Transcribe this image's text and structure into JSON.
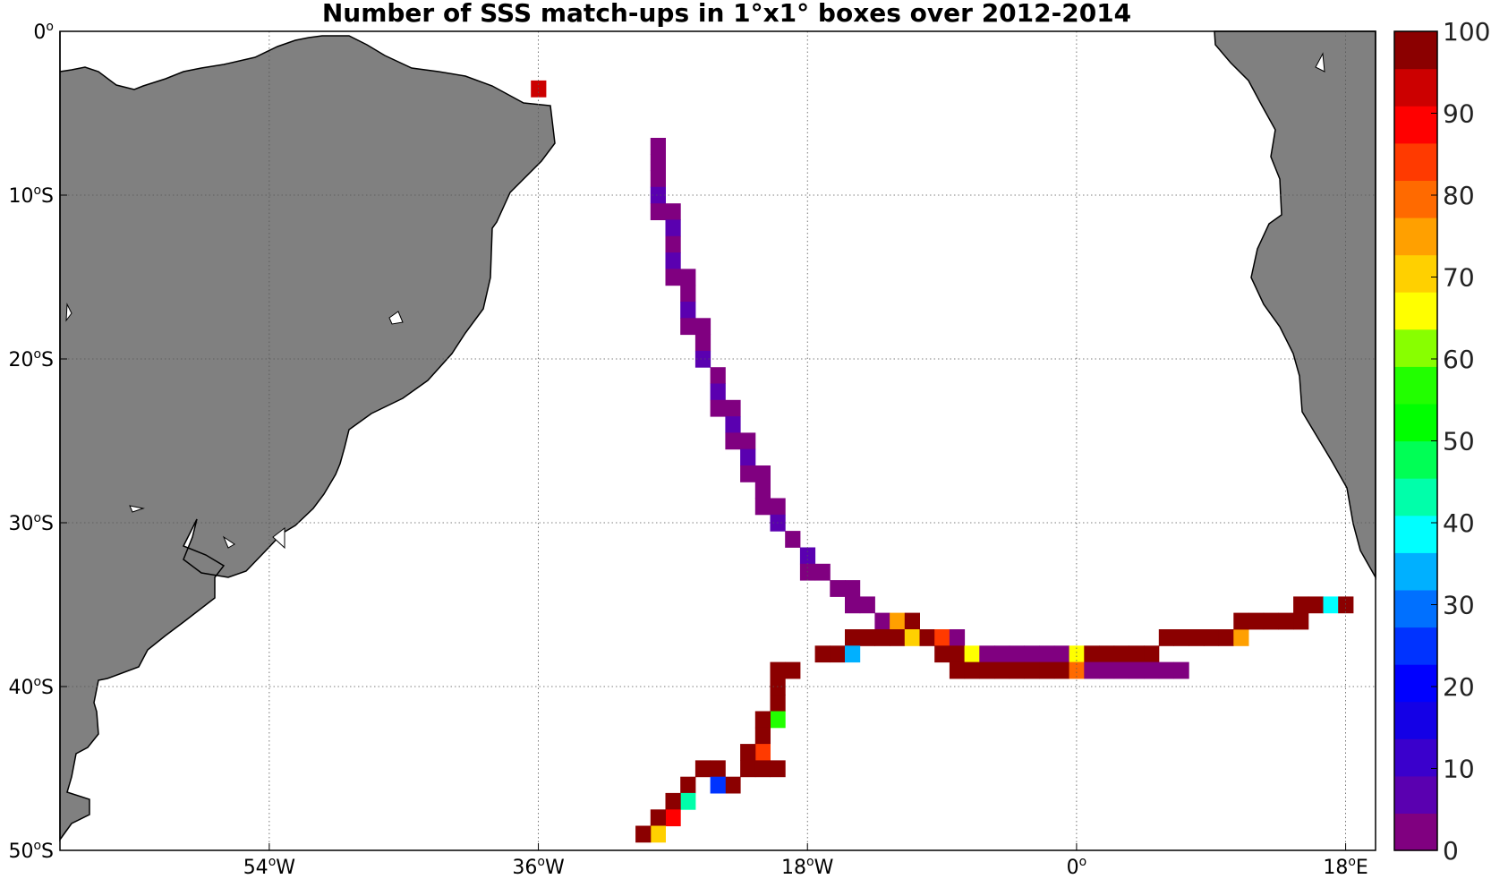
{
  "chart_data": {
    "type": "heatmap",
    "title": "Number of SSS match-ups in 1°x1° boxes over 2012-2014",
    "x_ticks": [
      {
        "value": -54,
        "label": "54",
        "suffix": "W"
      },
      {
        "value": -36,
        "label": "36",
        "suffix": "W"
      },
      {
        "value": -18,
        "label": "18",
        "suffix": "W"
      },
      {
        "value": 0,
        "label": "0",
        "suffix": ""
      },
      {
        "value": 18,
        "label": "18",
        "suffix": "E"
      }
    ],
    "y_ticks": [
      {
        "value": 0,
        "label": "0",
        "suffix": ""
      },
      {
        "value": -10,
        "label": "10",
        "suffix": "S"
      },
      {
        "value": -20,
        "label": "20",
        "suffix": "S"
      },
      {
        "value": -30,
        "label": "30",
        "suffix": "S"
      },
      {
        "value": -40,
        "label": "40",
        "suffix": "S"
      },
      {
        "value": -50,
        "label": "50",
        "suffix": "S"
      }
    ],
    "xlim": [
      -68,
      20
    ],
    "ylim": [
      -50,
      0
    ],
    "grid": true,
    "colorbar": {
      "min": 0,
      "max": 100,
      "step": 5,
      "tick_labels": [
        "0",
        "10",
        "20",
        "30",
        "40",
        "50",
        "60",
        "70",
        "80",
        "90",
        "100"
      ],
      "colors": [
        "#800080",
        "#5a00b0",
        "#3a00cc",
        "#1400e6",
        "#0000ff",
        "#0033ff",
        "#0070ff",
        "#00b0ff",
        "#00ffff",
        "#00ffaa",
        "#00ff55",
        "#00ff00",
        "#22ff00",
        "#88ff00",
        "#ffff00",
        "#ffd000",
        "#ffa000",
        "#ff6a00",
        "#ff3a00",
        "#ff0000",
        "#cc0000",
        "#8b0000"
      ]
    },
    "cells": [
      {
        "lon": -36.0,
        "lat": -3.5,
        "v": 92
      },
      {
        "lon": -28.0,
        "lat": -7.0,
        "v": 3
      },
      {
        "lon": -28.0,
        "lat": -8.0,
        "v": 3
      },
      {
        "lon": -28.0,
        "lat": -9.0,
        "v": 3
      },
      {
        "lon": -28.0,
        "lat": -10.0,
        "v": 8
      },
      {
        "lon": -28.0,
        "lat": -11.0,
        "v": 3
      },
      {
        "lon": -27.0,
        "lat": -11.0,
        "v": 3
      },
      {
        "lon": -27.0,
        "lat": -12.0,
        "v": 8
      },
      {
        "lon": -27.0,
        "lat": -13.0,
        "v": 3
      },
      {
        "lon": -27.0,
        "lat": -14.0,
        "v": 8
      },
      {
        "lon": -27.0,
        "lat": -15.0,
        "v": 3
      },
      {
        "lon": -26.0,
        "lat": -15.0,
        "v": 3
      },
      {
        "lon": -26.0,
        "lat": -16.0,
        "v": 3
      },
      {
        "lon": -26.0,
        "lat": -17.0,
        "v": 8
      },
      {
        "lon": -26.0,
        "lat": -18.0,
        "v": 3
      },
      {
        "lon": -25.0,
        "lat": -18.0,
        "v": 3
      },
      {
        "lon": -25.0,
        "lat": -19.0,
        "v": 3
      },
      {
        "lon": -25.0,
        "lat": -20.0,
        "v": 8
      },
      {
        "lon": -24.0,
        "lat": -21.0,
        "v": 3
      },
      {
        "lon": -24.0,
        "lat": -22.0,
        "v": 8
      },
      {
        "lon": -24.0,
        "lat": -23.0,
        "v": 3
      },
      {
        "lon": -23.0,
        "lat": -23.0,
        "v": 3
      },
      {
        "lon": -23.0,
        "lat": -24.0,
        "v": 8
      },
      {
        "lon": -23.0,
        "lat": -25.0,
        "v": 3
      },
      {
        "lon": -22.0,
        "lat": -25.0,
        "v": 3
      },
      {
        "lon": -22.0,
        "lat": -26.0,
        "v": 8
      },
      {
        "lon": -22.0,
        "lat": -27.0,
        "v": 3
      },
      {
        "lon": -21.0,
        "lat": -27.0,
        "v": 3
      },
      {
        "lon": -21.0,
        "lat": -28.0,
        "v": 3
      },
      {
        "lon": -21.0,
        "lat": -29.0,
        "v": 3
      },
      {
        "lon": -20.0,
        "lat": -29.0,
        "v": 3
      },
      {
        "lon": -20.0,
        "lat": -30.0,
        "v": 8
      },
      {
        "lon": -19.0,
        "lat": -31.0,
        "v": 3
      },
      {
        "lon": -18.0,
        "lat": -32.0,
        "v": 8
      },
      {
        "lon": -18.0,
        "lat": -33.0,
        "v": 3
      },
      {
        "lon": -17.0,
        "lat": -33.0,
        "v": 3
      },
      {
        "lon": -16.0,
        "lat": -34.0,
        "v": 3
      },
      {
        "lon": -15.0,
        "lat": -34.0,
        "v": 3
      },
      {
        "lon": -15.0,
        "lat": -35.0,
        "v": 3
      },
      {
        "lon": -14.0,
        "lat": -35.0,
        "v": 3
      },
      {
        "lon": -13.0,
        "lat": -36.0,
        "v": 3
      },
      {
        "lon": -12.0,
        "lat": -36.0,
        "v": 75
      },
      {
        "lon": -11.0,
        "lat": -36.0,
        "v": 100
      },
      {
        "lon": -15.0,
        "lat": -37.0,
        "v": 100
      },
      {
        "lon": -14.0,
        "lat": -37.0,
        "v": 100
      },
      {
        "lon": -13.0,
        "lat": -37.0,
        "v": 100
      },
      {
        "lon": -12.0,
        "lat": -37.0,
        "v": 100
      },
      {
        "lon": -11.0,
        "lat": -37.0,
        "v": 70
      },
      {
        "lon": -10.0,
        "lat": -37.0,
        "v": 100
      },
      {
        "lon": -9.0,
        "lat": -37.0,
        "v": 82
      },
      {
        "lon": -8.0,
        "lat": -37.0,
        "v": 3
      },
      {
        "lon": -17.0,
        "lat": -38.0,
        "v": 100
      },
      {
        "lon": -16.0,
        "lat": -38.0,
        "v": 100
      },
      {
        "lon": -15.0,
        "lat": -38.0,
        "v": 33
      },
      {
        "lon": -9.0,
        "lat": -38.0,
        "v": 100
      },
      {
        "lon": -8.0,
        "lat": -38.0,
        "v": 100
      },
      {
        "lon": -7.0,
        "lat": -38.0,
        "v": 65
      },
      {
        "lon": -6.0,
        "lat": -38.0,
        "v": 3
      },
      {
        "lon": -5.0,
        "lat": -38.0,
        "v": 3
      },
      {
        "lon": -4.0,
        "lat": -38.0,
        "v": 3
      },
      {
        "lon": -3.0,
        "lat": -38.0,
        "v": 3
      },
      {
        "lon": -2.0,
        "lat": -38.0,
        "v": 3
      },
      {
        "lon": -1.0,
        "lat": -38.0,
        "v": 3
      },
      {
        "lon": 0.0,
        "lat": -38.0,
        "v": 65
      },
      {
        "lon": 1.0,
        "lat": -38.0,
        "v": 100
      },
      {
        "lon": 2.0,
        "lat": -38.0,
        "v": 100
      },
      {
        "lon": 3.0,
        "lat": -38.0,
        "v": 100
      },
      {
        "lon": 4.0,
        "lat": -38.0,
        "v": 100
      },
      {
        "lon": 5.0,
        "lat": -38.0,
        "v": 100
      },
      {
        "lon": 6.0,
        "lat": -37.0,
        "v": 100
      },
      {
        "lon": 7.0,
        "lat": -37.0,
        "v": 100
      },
      {
        "lon": 8.0,
        "lat": -37.0,
        "v": 100
      },
      {
        "lon": 9.0,
        "lat": -37.0,
        "v": 100
      },
      {
        "lon": 10.0,
        "lat": -37.0,
        "v": 100
      },
      {
        "lon": 11.0,
        "lat": -37.0,
        "v": 75
      },
      {
        "lon": 11.0,
        "lat": -36.0,
        "v": 100
      },
      {
        "lon": 12.0,
        "lat": -36.0,
        "v": 100
      },
      {
        "lon": 13.0,
        "lat": -36.0,
        "v": 100
      },
      {
        "lon": 14.0,
        "lat": -36.0,
        "v": 100
      },
      {
        "lon": 15.0,
        "lat": -36.0,
        "v": 100
      },
      {
        "lon": 15.0,
        "lat": -35.0,
        "v": 100
      },
      {
        "lon": 16.0,
        "lat": -35.0,
        "v": 100
      },
      {
        "lon": 17.0,
        "lat": -35.0,
        "v": 38
      },
      {
        "lon": 18.0,
        "lat": -35.0,
        "v": 100
      },
      {
        "lon": -8.0,
        "lat": -39.0,
        "v": 100
      },
      {
        "lon": -7.0,
        "lat": -39.0,
        "v": 100
      },
      {
        "lon": -6.0,
        "lat": -39.0,
        "v": 100
      },
      {
        "lon": -5.0,
        "lat": -39.0,
        "v": 100
      },
      {
        "lon": -4.0,
        "lat": -39.0,
        "v": 100
      },
      {
        "lon": -3.0,
        "lat": -39.0,
        "v": 100
      },
      {
        "lon": -2.0,
        "lat": -39.0,
        "v": 100
      },
      {
        "lon": -1.0,
        "lat": -39.0,
        "v": 100
      },
      {
        "lon": 0.0,
        "lat": -39.0,
        "v": 80
      },
      {
        "lon": 1.0,
        "lat": -39.0,
        "v": 3
      },
      {
        "lon": 2.0,
        "lat": -39.0,
        "v": 3
      },
      {
        "lon": 3.0,
        "lat": -39.0,
        "v": 3
      },
      {
        "lon": 4.0,
        "lat": -39.0,
        "v": 3
      },
      {
        "lon": 5.0,
        "lat": -39.0,
        "v": 3
      },
      {
        "lon": 6.0,
        "lat": -39.0,
        "v": 3
      },
      {
        "lon": 7.0,
        "lat": -39.0,
        "v": 3
      },
      {
        "lon": -20.0,
        "lat": -39.0,
        "v": 100
      },
      {
        "lon": -19.0,
        "lat": -39.0,
        "v": 100
      },
      {
        "lon": -20.0,
        "lat": -40.0,
        "v": 100
      },
      {
        "lon": -20.0,
        "lat": -41.0,
        "v": 100
      },
      {
        "lon": -20.0,
        "lat": -42.0,
        "v": 55
      },
      {
        "lon": -21.0,
        "lat": -42.0,
        "v": 100
      },
      {
        "lon": -21.0,
        "lat": -43.0,
        "v": 100
      },
      {
        "lon": -21.0,
        "lat": -44.0,
        "v": 85
      },
      {
        "lon": -22.0,
        "lat": -44.0,
        "v": 100
      },
      {
        "lon": -22.0,
        "lat": -45.0,
        "v": 100
      },
      {
        "lon": -21.0,
        "lat": -45.0,
        "v": 100
      },
      {
        "lon": -20.0,
        "lat": -45.0,
        "v": 100
      },
      {
        "lon": -24.0,
        "lat": -45.0,
        "v": 100
      },
      {
        "lon": -25.0,
        "lat": -45.0,
        "v": 100
      },
      {
        "lon": -23.0,
        "lat": -46.0,
        "v": 100
      },
      {
        "lon": -24.0,
        "lat": -46.0,
        "v": 25
      },
      {
        "lon": -26.0,
        "lat": -46.0,
        "v": 100
      },
      {
        "lon": -26.0,
        "lat": -47.0,
        "v": 45
      },
      {
        "lon": -27.0,
        "lat": -47.0,
        "v": 100
      },
      {
        "lon": -27.0,
        "lat": -48.0,
        "v": 90
      },
      {
        "lon": -28.0,
        "lat": -48.0,
        "v": 100
      },
      {
        "lon": -28.0,
        "lat": -49.0,
        "v": 70
      },
      {
        "lon": -29.0,
        "lat": -49.0,
        "v": 100
      }
    ]
  }
}
